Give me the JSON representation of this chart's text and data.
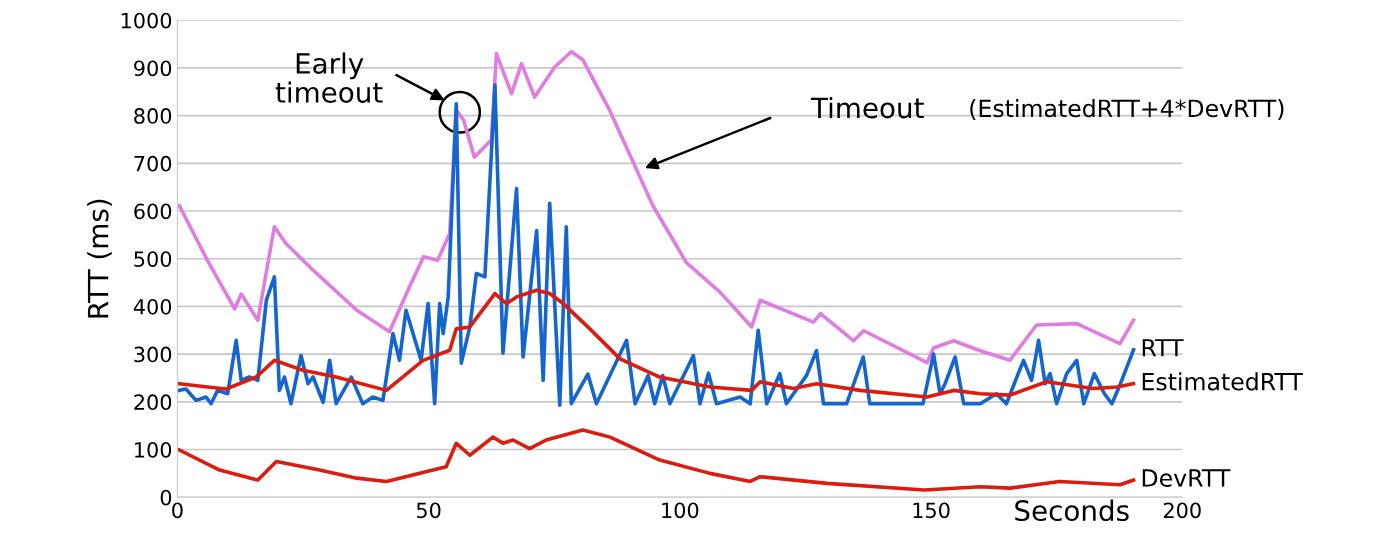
{
  "chart_data": {
    "type": "line",
    "ylabel": "RTT (ms)",
    "xlabel": "Seconds",
    "xlim": [
      0,
      200
    ],
    "xticks": [
      0,
      50,
      100,
      150,
      200
    ],
    "ylim": [
      0,
      1000
    ],
    "yticks": [
      0,
      100,
      200,
      300,
      400,
      500,
      600,
      700,
      800,
      900,
      1000
    ],
    "grid": "y",
    "legend": false,
    "marker": "none",
    "line_style": "solid",
    "annotations": [
      "Early\ntimeout",
      "Timeout",
      "(EstimatedRTT+4*DevRTT)"
    ],
    "series": [
      {
        "color": "#e07de0",
        "x": [
          0.4,
          6,
          11.4,
          12.7,
          16,
          19.3,
          21.6,
          27,
          35.7,
          42.2,
          46.5,
          49,
          51.8,
          54.2,
          55.5,
          57,
          59.1,
          62.5,
          63.5,
          66.5,
          68.5,
          71.1,
          75.1,
          78.4,
          80.7,
          86,
          94.7,
          101.3,
          108,
          114.3,
          116,
          126.6,
          128,
          134.6,
          136.6,
          149.2,
          150.5,
          154.5,
          159.8,
          165.7,
          171,
          179,
          187.6,
          190.3
        ],
        "values": [
          611,
          496,
          395,
          426,
          371,
          567,
          532,
          476,
          392,
          347,
          448,
          504,
          497,
          553,
          812,
          790,
          713,
          749,
          930,
          846,
          909,
          839,
          902,
          934,
          917,
          812,
          610,
          492,
          430,
          357,
          413,
          367,
          385,
          328,
          349,
          282,
          313,
          328,
          307,
          287,
          361,
          364,
          322,
          371
        ]
      },
      {
        "name": "RTT",
        "color": "#1565cf",
        "x": [
          0.4,
          1.7,
          3.7,
          5.7,
          6.7,
          8.0,
          10.0,
          11.7,
          12.7,
          14.3,
          16.0,
          17.7,
          19.3,
          20.3,
          21.3,
          22.6,
          24.6,
          26.0,
          27.0,
          29.0,
          30.3,
          31.6,
          34.6,
          36.9,
          38.9,
          40.9,
          42.9,
          44.2,
          45.5,
          46.9,
          48.5,
          49.9,
          51.2,
          52.2,
          52.9,
          53.9,
          55.5,
          56.5,
          58.2,
          59.5,
          61.2,
          63.2,
          64.8,
          67.5,
          68.8,
          71.5,
          72.8,
          74.1,
          76.1,
          77.4,
          78.4,
          81.7,
          83.4,
          89.4,
          91.1,
          93.7,
          95.0,
          96.6,
          98.0,
          102.7,
          104.0,
          105.7,
          107.3,
          112.0,
          114.0,
          115.6,
          117.3,
          119.9,
          121.2,
          125.2,
          127.2,
          128.6,
          133.2,
          136.5,
          137.8,
          142.5,
          145.8,
          148.4,
          150.5,
          151.8,
          152.8,
          154.8,
          156.5,
          159.8,
          163.0,
          165.0,
          168.4,
          170.0,
          171.4,
          172.7,
          173.7,
          175.0,
          177.0,
          179.0,
          180.4,
          182.5,
          184.5,
          186.0,
          187.7,
          190.3
        ],
        "values": [
          224,
          227,
          203,
          210,
          196,
          224,
          217,
          329,
          245,
          252,
          245,
          413,
          462,
          224,
          252,
          196,
          297,
          238,
          252,
          199,
          287,
          196,
          252,
          196,
          210,
          203,
          343,
          287,
          392,
          343,
          287,
          406,
          196,
          406,
          343,
          420,
          825,
          281,
          357,
          469,
          462,
          864,
          302,
          647,
          294,
          559,
          245,
          616,
          193,
          567,
          196,
          258,
          196,
          329,
          196,
          255,
          196,
          255,
          196,
          297,
          196,
          260,
          196,
          210,
          196,
          350,
          196,
          259,
          196,
          255,
          307,
          196,
          196,
          294,
          196,
          196,
          196,
          196,
          300,
          217,
          238,
          294,
          196,
          196,
          217,
          196,
          287,
          245,
          329,
          238,
          259,
          196,
          259,
          287,
          196,
          259,
          217,
          196,
          238,
          309
        ]
      },
      {
        "name": "EstimatedRTT",
        "color": "#dc1c10",
        "x": [
          0.4,
          6.0,
          9.7,
          15.7,
          19.3,
          25,
          31.6,
          41.6,
          48.9,
          54.2,
          55.5,
          58.2,
          63.2,
          65.5,
          67.5,
          71.5,
          74.1,
          76.8,
          82.1,
          88.1,
          96.0,
          106,
          114.3,
          116,
          122.6,
          127.2,
          135.9,
          149.2,
          154.5,
          159.8,
          165.7,
          173,
          182.3,
          187,
          190.3
        ],
        "values": [
          238,
          231,
          227,
          252,
          287,
          266,
          252,
          224,
          287,
          308,
          353,
          357,
          427,
          406,
          420,
          434,
          427,
          406,
          353,
          290,
          252,
          231,
          224,
          242,
          228,
          238,
          224,
          210,
          224,
          217,
          214,
          242,
          228,
          231,
          238
        ]
      },
      {
        "name": "DevRTT",
        "color": "#dc1c10",
        "x": [
          0.4,
          8.4,
          16,
          19.7,
          28.3,
          35.7,
          41.6,
          53.5,
          55.5,
          58.2,
          62.8,
          64.8,
          66.8,
          70.1,
          73.4,
          80.7,
          86.1,
          96,
          106,
          114,
          116,
          129.3,
          148.6,
          159.8,
          165.7,
          175.6,
          187.6,
          190.3
        ],
        "values": [
          99,
          57,
          36,
          75,
          57,
          40,
          33,
          64,
          113,
          88,
          126,
          113,
          120,
          102,
          120,
          141,
          126,
          78,
          50,
          33,
          43,
          29,
          15,
          22,
          19,
          33,
          26,
          36
        ]
      }
    ]
  }
}
